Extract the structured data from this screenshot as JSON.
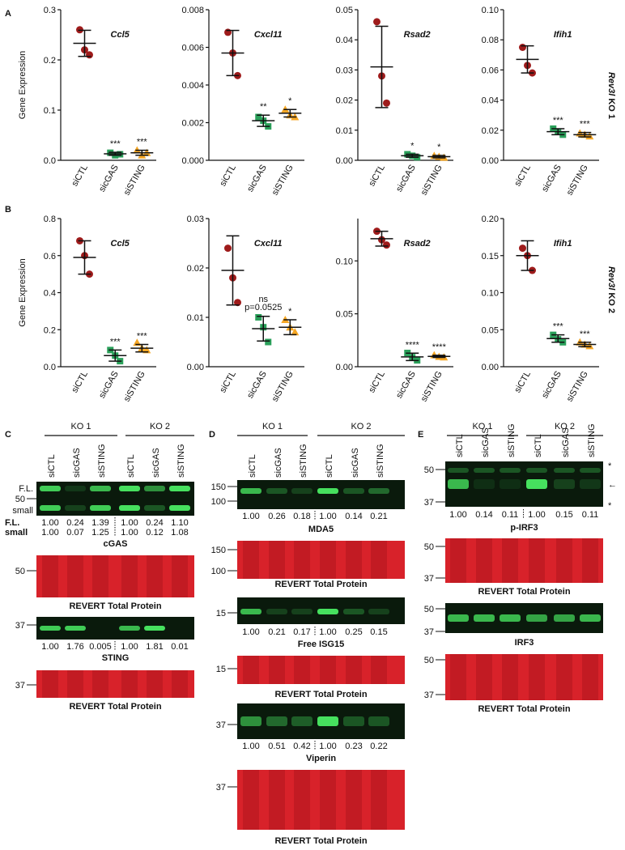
{
  "panel_labels": [
    "A",
    "B",
    "C",
    "D",
    "E"
  ],
  "row_labels": [
    {
      "gene": "Rev3l",
      "line": "KO 1"
    },
    {
      "gene": "Rev3l",
      "line": "KO 2"
    }
  ],
  "chart_data": [
    {
      "type": "dot",
      "title": "Ccl5",
      "ylabel": "Gene Expression",
      "categories": [
        "siCTL",
        "sicGAS",
        "siSTING"
      ],
      "colors": [
        "#9e1b1b",
        "#2aa05a",
        "#f5a623"
      ],
      "ylim": [
        0,
        0.3
      ],
      "yticks": [
        {
          "value": 0,
          "label": "0.0"
        },
        0.1,
        0.2,
        0.3
      ],
      "points": [
        [
          0.26,
          0.22,
          0.21
        ],
        [
          0.015,
          0.01,
          0.012
        ],
        [
          0.02,
          0.01,
          0.015
        ]
      ],
      "mean": [
        0.233,
        0.013,
        0.015
      ],
      "sd": [
        0.026,
        0.003,
        0.005
      ],
      "significance": [
        null,
        "***",
        "***"
      ]
    },
    {
      "type": "dot",
      "title": "Cxcl11",
      "categories": [
        "siCTL",
        "sicGAS",
        "siSTING"
      ],
      "colors": [
        "#9e1b1b",
        "#2aa05a",
        "#f5a623"
      ],
      "ylim": [
        0,
        0.008
      ],
      "yticks": [
        {
          "value": 0,
          "label": "0.000"
        },
        0.002,
        0.004,
        0.006,
        0.008
      ],
      "points": [
        [
          0.0068,
          0.0057,
          0.0045
        ],
        [
          0.0023,
          0.0021,
          0.0018
        ],
        [
          0.0027,
          0.0024,
          0.0023
        ]
      ],
      "mean": [
        0.0057,
        0.0021,
        0.0025
      ],
      "sd": [
        0.0012,
        0.0003,
        0.0002
      ],
      "significance": [
        null,
        "**",
        "*"
      ]
    },
    {
      "type": "dot",
      "title": "Rsad2",
      "categories": [
        "siCTL",
        "sicGAS",
        "siSTING"
      ],
      "colors": [
        "#9e1b1b",
        "#2aa05a",
        "#f5a623"
      ],
      "ylim": [
        0,
        0.05
      ],
      "yticks": [
        {
          "value": 0,
          "label": "0.00"
        },
        0.01,
        0.02,
        0.03,
        0.04,
        0.05
      ],
      "points": [
        [
          0.046,
          0.028,
          0.019
        ],
        [
          0.002,
          0.0015,
          0.001
        ],
        [
          0.0015,
          0.0012,
          0.0009
        ]
      ],
      "mean": [
        0.031,
        0.0015,
        0.0012
      ],
      "sd": [
        0.0135,
        0.0005,
        0.0004
      ],
      "significance": [
        null,
        "*",
        "*"
      ]
    },
    {
      "type": "dot",
      "title": "Ifih1",
      "categories": [
        "siCTL",
        "sicGAS",
        "siSTING"
      ],
      "colors": [
        "#9e1b1b",
        "#2aa05a",
        "#f5a623"
      ],
      "ylim": [
        0,
        0.1
      ],
      "yticks": [
        {
          "value": 0,
          "label": "0.00"
        },
        0.02,
        0.04,
        0.06,
        0.08,
        {
          "value": 0.1,
          "label": "0.10"
        }
      ],
      "points": [
        [
          0.075,
          0.063,
          0.058
        ],
        [
          0.021,
          0.019,
          0.017
        ],
        [
          0.018,
          0.017,
          0.016
        ]
      ],
      "mean": [
        0.067,
        0.019,
        0.017
      ],
      "sd": [
        0.009,
        0.002,
        0.0015
      ],
      "significance": [
        null,
        "***",
        "***"
      ]
    },
    {
      "type": "dot",
      "title": "Ccl5",
      "ylabel": "Gene Expression",
      "categories": [
        "siCTL",
        "sicGAS",
        "siSTING"
      ],
      "colors": [
        "#9e1b1b",
        "#2aa05a",
        "#f5a623"
      ],
      "ylim": [
        0,
        0.8
      ],
      "yticks": [
        {
          "value": 0,
          "label": "0.0"
        },
        0.2,
        0.4,
        0.6,
        0.8
      ],
      "points": [
        [
          0.68,
          0.6,
          0.5
        ],
        [
          0.09,
          0.06,
          0.03
        ],
        [
          0.13,
          0.1,
          0.09
        ]
      ],
      "mean": [
        0.59,
        0.06,
        0.1
      ],
      "sd": [
        0.09,
        0.03,
        0.02
      ],
      "significance": [
        null,
        "***",
        "***"
      ]
    },
    {
      "type": "dot",
      "title": "Cxcl11",
      "categories": [
        "siCTL",
        "sicGAS",
        "siSTING"
      ],
      "colors": [
        "#9e1b1b",
        "#2aa05a",
        "#f5a623"
      ],
      "ylim": [
        0,
        0.03
      ],
      "yticks": [
        {
          "value": 0,
          "label": "0.00"
        },
        0.01,
        0.02,
        0.03
      ],
      "points": [
        [
          0.024,
          0.018,
          0.013
        ],
        [
          0.01,
          0.008,
          0.005
        ],
        [
          0.0095,
          0.008,
          0.007
        ]
      ],
      "mean": [
        0.0195,
        0.0077,
        0.008
      ],
      "sd": [
        0.007,
        0.0025,
        0.0015
      ],
      "significance": [
        null,
        "ns",
        "*"
      ],
      "p_values": [
        null,
        "p=0.0525",
        null
      ]
    },
    {
      "type": "dot",
      "title": "Rsad2",
      "categories": [
        "siCTL",
        "sicGAS",
        "siSTING"
      ],
      "colors": [
        "#9e1b1b",
        "#2aa05a",
        "#f5a623"
      ],
      "ylim": [
        0,
        0.14
      ],
      "yticks": [
        {
          "value": 0,
          "label": "0.00"
        },
        0.05,
        {
          "value": 0.1,
          "label": "0.10"
        }
      ],
      "points": [
        [
          0.128,
          0.12,
          0.115
        ],
        [
          0.013,
          0.009,
          0.006
        ],
        [
          0.011,
          0.0095,
          0.009
        ]
      ],
      "mean": [
        0.121,
        0.0093,
        0.0098
      ],
      "sd": [
        0.007,
        0.0035,
        0.001
      ],
      "significance": [
        null,
        "****",
        "****"
      ]
    },
    {
      "type": "dot",
      "title": "Ifih1",
      "categories": [
        "siCTL",
        "sicGAS",
        "siSTING"
      ],
      "colors": [
        "#9e1b1b",
        "#2aa05a",
        "#f5a623"
      ],
      "ylim": [
        0,
        0.2
      ],
      "yticks": [
        {
          "value": 0,
          "label": "0.00"
        },
        0.05,
        {
          "value": 0.1,
          "label": "0.10"
        },
        0.15,
        {
          "value": 0.2,
          "label": "0.20"
        }
      ],
      "points": [
        [
          0.16,
          0.15,
          0.13
        ],
        [
          0.043,
          0.037,
          0.033
        ],
        [
          0.033,
          0.03,
          0.028
        ]
      ],
      "mean": [
        0.15,
        0.038,
        0.03
      ],
      "sd": [
        0.02,
        0.005,
        0.003
      ],
      "significance": [
        null,
        "***",
        "***"
      ]
    }
  ],
  "blots": [
    {
      "groups": [
        "KO 1",
        "KO 2"
      ],
      "lanes": [
        "siCTL",
        "sicGAS",
        "siSTING",
        "siCTL",
        "sicGAS",
        "siSTING"
      ],
      "images": [
        {
          "color": "green",
          "markers": [
            "F.L.",
            "50",
            "small"
          ],
          "quant": [
            {
              "label": "F.L.",
              "values": [
                "1.00",
                "0.24",
                "1.39",
                "1.00",
                "0.24",
                "1.10"
              ]
            },
            {
              "label": "small",
              "values": [
                "1.00",
                "0.07",
                "1.25",
                "1.00",
                "0.12",
                "1.08"
              ]
            }
          ],
          "caption": "cGAS"
        },
        {
          "color": "red",
          "markers": [
            "50"
          ],
          "caption": "REVERT Total Protein"
        },
        {
          "color": "green",
          "markers": [
            "37"
          ],
          "quant": [
            {
              "values": [
                "1.00",
                "1.76",
                "0.005",
                "1.00",
                "1.81",
                "0.01"
              ]
            }
          ],
          "caption": "STING"
        },
        {
          "color": "red",
          "markers": [
            "37"
          ],
          "caption": "REVERT Total Protein"
        }
      ]
    },
    {
      "groups": [
        "KO 1",
        "KO 2"
      ],
      "lanes": [
        "siCTL",
        "sicGAS",
        "siSTING",
        "siCTL",
        "sicGAS",
        "siSTING"
      ],
      "images": [
        {
          "color": "green",
          "markers": [
            "150",
            "100"
          ],
          "quant": [
            {
              "values": [
                "1.00",
                "0.26",
                "0.18",
                "1.00",
                "0.14",
                "0.21"
              ]
            }
          ],
          "caption": "MDA5"
        },
        {
          "color": "red",
          "markers": [
            "150",
            "100"
          ],
          "caption": "REVERT Total Protein"
        },
        {
          "color": "green",
          "markers": [
            "15"
          ],
          "quant": [
            {
              "values": [
                "1.00",
                "0.21",
                "0.17",
                "1.00",
                "0.25",
                "0.15"
              ]
            }
          ],
          "caption": "Free ISG15"
        },
        {
          "color": "red",
          "markers": [
            "15"
          ],
          "caption": "REVERT Total Protein"
        },
        {
          "color": "green",
          "markers": [
            "37"
          ],
          "quant": [
            {
              "values": [
                "1.00",
                "0.51",
                "0.42",
                "1.00",
                "0.23",
                "0.22"
              ]
            }
          ],
          "caption": "Viperin"
        },
        {
          "color": "red",
          "markers": [
            "37"
          ],
          "caption": "REVERT Total Protein"
        }
      ]
    },
    {
      "groups": [
        "KO 1",
        "KO 2"
      ],
      "lanes": [
        "siCTL",
        "sicGAS",
        "siSTING",
        "siCTL",
        "sicGAS",
        "siSTING"
      ],
      "images": [
        {
          "color": "green",
          "markers": [
            "50",
            "37"
          ],
          "right_markers": [
            "*",
            "←",
            "*"
          ],
          "quant": [
            {
              "values": [
                "1.00",
                "0.14",
                "0.11",
                "1.00",
                "0.15",
                "0.11"
              ]
            }
          ],
          "caption": "p-IRF3"
        },
        {
          "color": "red",
          "markers": [
            "50",
            "37"
          ],
          "caption": "REVERT Total Protein"
        },
        {
          "color": "green",
          "markers": [
            "50",
            "37"
          ],
          "caption": "IRF3"
        },
        {
          "color": "red",
          "markers": [
            "50",
            "37"
          ],
          "caption": "REVERT Total Protein"
        }
      ]
    }
  ]
}
